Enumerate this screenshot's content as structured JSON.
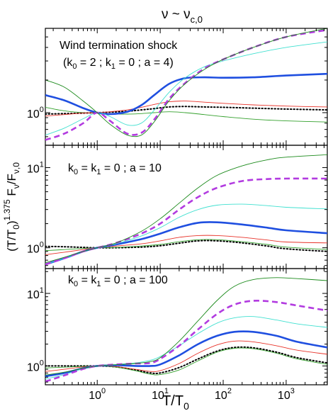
{
  "figure": {
    "title_main": "ν ~ ν",
    "title_sub": "c,0",
    "ylabel_main": "(T/T",
    "ylabel_sub0": "0",
    "ylabel_paren": ")",
    "ylabel_sup": "1.375",
    "ylabel_mid": " F",
    "ylabel_sub_nu": "ν",
    "ylabel_slash": "/F",
    "ylabel_sub_nu0": "ν,0",
    "xlabel_main": "T/T",
    "xlabel_sub": "0"
  },
  "chart_data": [
    {
      "type": "line",
      "title": "",
      "annotation_line1": "Wind termination shock",
      "annotation_line2_parts": [
        "(k",
        "0",
        " = 2 ; k",
        "1",
        " = 0 ; a = 4)"
      ],
      "x_scale": "log",
      "y_scale": "log",
      "xlim": [
        0.15,
        4500
      ],
      "ylim": [
        0.5,
        6
      ],
      "x_ticks": [
        "10^0",
        "10^1",
        "10^2",
        "10^3"
      ],
      "y_ticks": [
        "10^0"
      ],
      "series": [
        {
          "style": "thin-green",
          "color": "#33a02c",
          "x": [
            0.15,
            0.3,
            0.6,
            1,
            1.6,
            3,
            5,
            8,
            14,
            25,
            50,
            100,
            300,
            1000,
            4500
          ],
          "y": [
            1.12,
            1.04,
            1.0,
            0.99,
            0.97,
            0.97,
            0.98,
            1.0,
            1.02,
            1.0,
            0.96,
            0.92,
            0.87,
            0.84,
            0.82
          ]
        },
        {
          "style": "black-dotted",
          "color": "#000000",
          "x": [
            0.15,
            0.3,
            0.6,
            1,
            1.6,
            3,
            5,
            8,
            14,
            25,
            50,
            100,
            300,
            1000,
            4500
          ],
          "y": [
            0.97,
            0.98,
            0.99,
            1.0,
            1.01,
            1.03,
            1.06,
            1.09,
            1.13,
            1.14,
            1.13,
            1.12,
            1.1,
            1.08,
            1.06
          ]
        },
        {
          "style": "thin-red",
          "color": "#e8332a",
          "x": [
            0.15,
            0.3,
            0.6,
            1,
            1.6,
            3,
            5,
            8,
            14,
            25,
            50,
            100,
            300,
            1000,
            4500
          ],
          "y": [
            0.93,
            0.96,
            0.99,
            1.0,
            1.02,
            1.06,
            1.12,
            1.19,
            1.26,
            1.28,
            1.25,
            1.22,
            1.18,
            1.15,
            1.13
          ]
        },
        {
          "style": "thick-blue",
          "color": "#1f4fe0",
          "x": [
            0.15,
            0.3,
            0.6,
            1,
            1.6,
            3,
            5,
            8,
            14,
            25,
            50,
            100,
            300,
            1000,
            4500
          ],
          "y": [
            1.45,
            1.3,
            1.1,
            1.0,
            0.97,
            1.02,
            1.17,
            1.45,
            1.85,
            2.08,
            2.12,
            2.1,
            2.12,
            2.2,
            2.28
          ]
        },
        {
          "style": "thin-cyan",
          "color": "#40e0d0",
          "x": [
            0.15,
            0.3,
            0.6,
            1,
            1.6,
            3,
            5,
            8,
            14,
            25,
            50,
            100,
            300,
            1000,
            4500
          ],
          "y": [
            0.62,
            0.72,
            0.88,
            1.0,
            0.92,
            0.77,
            0.8,
            1.05,
            1.55,
            2.1,
            2.65,
            3.0,
            3.5,
            4.0,
            4.5
          ]
        },
        {
          "style": "dashed-magenta",
          "color": "#b23be0",
          "x": [
            0.15,
            0.3,
            0.6,
            1,
            1.6,
            3,
            5,
            8,
            14,
            25,
            50,
            100,
            300,
            1000,
            4500
          ],
          "y": [
            0.56,
            0.64,
            0.8,
            1.0,
            0.84,
            0.64,
            0.65,
            0.86,
            1.35,
            1.88,
            2.55,
            3.1,
            4.0,
            5.0,
            5.8
          ]
        },
        {
          "style": "thin-darkgreen",
          "color": "#1b8a1b",
          "x": [
            0.15,
            0.3,
            0.6,
            1,
            1.6,
            3,
            5,
            8,
            14,
            25,
            50,
            100,
            300,
            1000,
            4500
          ],
          "y": [
            2.0,
            1.72,
            1.28,
            1.0,
            0.78,
            0.62,
            0.62,
            0.82,
            1.3,
            1.85,
            2.5,
            3.1,
            4.0,
            5.0,
            6.0
          ]
        }
      ]
    },
    {
      "type": "line",
      "title": "",
      "annotation_line1_parts": [
        "k",
        "0",
        " = k",
        "1",
        " = 0 ; a = 10"
      ],
      "x_scale": "log",
      "y_scale": "log",
      "xlim": [
        0.15,
        4500
      ],
      "ylim": [
        0.55,
        19
      ],
      "x_ticks": [
        "10^0",
        "10^1",
        "10^2",
        "10^3"
      ],
      "y_ticks": [
        "10^0",
        "10^1"
      ],
      "series": [
        {
          "style": "black-dotted",
          "color": "#000000",
          "x": [
            0.15,
            0.3,
            0.6,
            1,
            2,
            5,
            10,
            20,
            40,
            80,
            200,
            500,
            1000,
            4500
          ],
          "y": [
            1.04,
            1.03,
            1.01,
            1.0,
            1.0,
            1.02,
            1.06,
            1.14,
            1.22,
            1.22,
            1.15,
            1.05,
            0.97,
            0.9
          ]
        },
        {
          "style": "thin-green",
          "color": "#33a02c",
          "x": [
            0.15,
            0.3,
            0.6,
            1,
            2,
            5,
            10,
            20,
            40,
            80,
            200,
            500,
            1000,
            4500
          ],
          "y": [
            0.92,
            0.95,
            0.98,
            1.0,
            1.01,
            1.05,
            1.1,
            1.19,
            1.26,
            1.26,
            1.19,
            1.1,
            1.02,
            0.95
          ]
        },
        {
          "style": "thin-red",
          "color": "#e8332a",
          "x": [
            0.15,
            0.3,
            0.6,
            1,
            2,
            5,
            10,
            20,
            40,
            80,
            200,
            500,
            1000,
            4500
          ],
          "y": [
            0.82,
            0.88,
            0.95,
            1.0,
            1.05,
            1.12,
            1.22,
            1.35,
            1.42,
            1.42,
            1.35,
            1.25,
            1.18,
            1.15
          ]
        },
        {
          "style": "thick-blue",
          "color": "#1f4fe0",
          "x": [
            0.15,
            0.3,
            0.6,
            1,
            2,
            5,
            10,
            20,
            40,
            80,
            200,
            500,
            1000,
            4500
          ],
          "y": [
            0.62,
            0.74,
            0.9,
            1.0,
            1.1,
            1.28,
            1.5,
            1.8,
            2.05,
            2.08,
            1.95,
            1.78,
            1.65,
            1.52
          ]
        },
        {
          "style": "thin-cyan",
          "color": "#40e0d0",
          "x": [
            0.15,
            0.3,
            0.6,
            1,
            2,
            5,
            10,
            20,
            40,
            80,
            200,
            500,
            1000,
            4500
          ],
          "y": [
            0.62,
            0.74,
            0.9,
            1.0,
            1.12,
            1.4,
            1.78,
            2.4,
            3.0,
            3.4,
            3.5,
            3.35,
            3.2,
            3.05
          ]
        },
        {
          "style": "dashed-magenta",
          "color": "#b23be0",
          "x": [
            0.15,
            0.3,
            0.6,
            1,
            2,
            5,
            10,
            20,
            40,
            80,
            200,
            500,
            1000,
            4500
          ],
          "y": [
            0.62,
            0.74,
            0.9,
            1.0,
            1.15,
            1.5,
            2.0,
            3.0,
            4.3,
            5.6,
            6.8,
            7.2,
            7.3,
            7.3
          ]
        },
        {
          "style": "thin-darkgreen",
          "color": "#1b8a1b",
          "x": [
            0.15,
            0.3,
            0.6,
            1,
            2,
            5,
            10,
            20,
            40,
            80,
            200,
            500,
            1000,
            4500
          ],
          "y": [
            0.65,
            0.76,
            0.9,
            1.0,
            1.15,
            1.6,
            2.3,
            3.6,
            5.6,
            8.0,
            10.5,
            12.5,
            13.5,
            14.5
          ]
        }
      ]
    },
    {
      "type": "line",
      "title": "",
      "annotation_line1_parts": [
        "k",
        "0",
        " = k",
        "1",
        " = 0 ; a = 100"
      ],
      "x_scale": "log",
      "y_scale": "log",
      "xlim": [
        0.15,
        4500
      ],
      "ylim": [
        0.55,
        22
      ],
      "x_ticks": [
        "10^0",
        "10^1",
        "10^2",
        "10^3"
      ],
      "y_ticks": [
        "10^0",
        "10^1"
      ],
      "series": [
        {
          "style": "black-dotted",
          "color": "#000000",
          "x": [
            0.15,
            0.3,
            0.6,
            1,
            2,
            4,
            7,
            10,
            20,
            40,
            80,
            150,
            300,
            700,
            1500,
            4500
          ],
          "y": [
            1.0,
            1.0,
            1.0,
            1.0,
            0.97,
            0.88,
            0.8,
            0.8,
            0.95,
            1.25,
            1.6,
            1.8,
            1.78,
            1.55,
            1.3,
            1.1
          ]
        },
        {
          "style": "thin-green",
          "color": "#33a02c",
          "x": [
            0.15,
            0.3,
            0.6,
            1,
            2,
            4,
            7,
            10,
            20,
            40,
            80,
            150,
            300,
            700,
            1500,
            4500
          ],
          "y": [
            0.94,
            0.96,
            0.99,
            1.0,
            0.96,
            0.86,
            0.77,
            0.76,
            0.88,
            1.18,
            1.55,
            1.75,
            1.73,
            1.5,
            1.25,
            1.05
          ]
        },
        {
          "style": "thin-red",
          "color": "#e8332a",
          "x": [
            0.15,
            0.3,
            0.6,
            1,
            2,
            4,
            7,
            10,
            20,
            40,
            80,
            150,
            300,
            700,
            1500,
            4500
          ],
          "y": [
            0.84,
            0.9,
            0.97,
            1.0,
            0.98,
            0.9,
            0.84,
            0.86,
            1.08,
            1.5,
            1.95,
            2.2,
            2.15,
            1.9,
            1.65,
            1.45
          ]
        },
        {
          "style": "thick-blue",
          "color": "#1f4fe0",
          "x": [
            0.15,
            0.3,
            0.6,
            1,
            2,
            4,
            7,
            10,
            20,
            40,
            80,
            150,
            300,
            700,
            1500,
            4500
          ],
          "y": [
            0.72,
            0.8,
            0.93,
            1.0,
            1.02,
            1.0,
            1.0,
            1.05,
            1.4,
            2.0,
            2.6,
            2.95,
            2.95,
            2.6,
            2.15,
            1.8
          ]
        },
        {
          "style": "thin-cyan",
          "color": "#40e0d0",
          "x": [
            0.15,
            0.3,
            0.6,
            1,
            2,
            4,
            7,
            10,
            20,
            40,
            80,
            150,
            300,
            700,
            1500,
            4500
          ],
          "y": [
            0.66,
            0.76,
            0.92,
            1.0,
            1.05,
            1.1,
            1.2,
            1.35,
            1.9,
            2.8,
            3.9,
            4.6,
            4.8,
            4.3,
            3.8,
            3.4
          ]
        },
        {
          "style": "dashed-magenta",
          "color": "#b23be0",
          "x": [
            0.15,
            0.3,
            0.6,
            1,
            2,
            4,
            7,
            10,
            20,
            40,
            80,
            150,
            300,
            700,
            1500,
            4500
          ],
          "y": [
            0.61,
            0.74,
            0.91,
            1.0,
            1.05,
            1.08,
            1.1,
            1.25,
            1.9,
            3.2,
            5.2,
            7.0,
            7.9,
            7.6,
            6.8,
            5.8
          ]
        },
        {
          "style": "thin-darkgreen",
          "color": "#1b8a1b",
          "x": [
            0.15,
            0.3,
            0.6,
            1,
            2,
            4,
            7,
            10,
            20,
            40,
            80,
            150,
            300,
            700,
            1500,
            4500
          ],
          "y": [
            0.75,
            0.82,
            0.93,
            1.0,
            1.04,
            1.08,
            1.15,
            1.3,
            2.2,
            4.2,
            8.0,
            12.5,
            15.5,
            16.5,
            16.0,
            15.0
          ]
        }
      ]
    }
  ]
}
